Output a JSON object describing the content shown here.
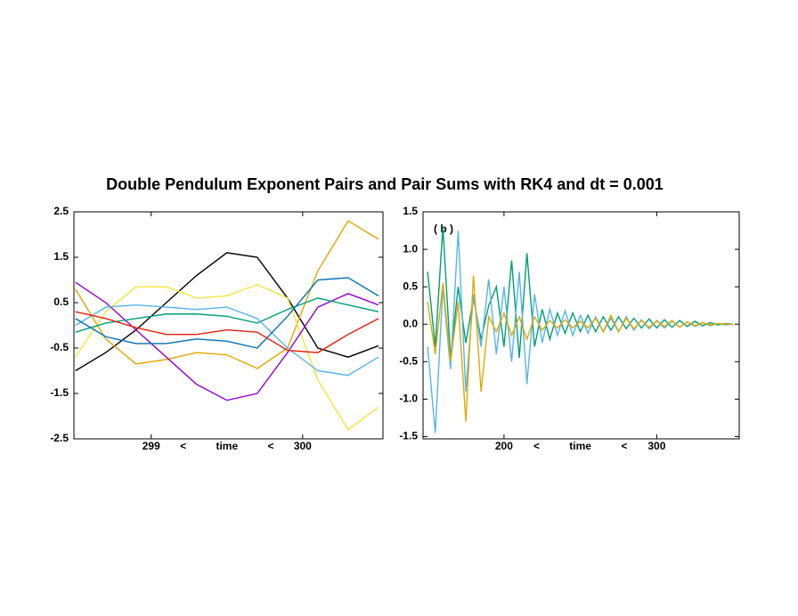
{
  "chart_data": [
    {
      "type": "line",
      "title": "Double Pendulum Exponent Pairs and Pair Sums with RK4 and dt = 0.001",
      "xlabel": "<          time          <",
      "x": [
        298.5,
        298.7,
        298.9,
        299.1,
        299.3,
        299.5,
        299.7,
        299.9,
        300.1,
        300.3,
        300.5
      ],
      "xlim": [
        298.49,
        300.53
      ],
      "xticks": [
        299,
        300
      ],
      "ylim": [
        -2.5,
        2.5
      ],
      "yticks": [
        2.5,
        1.5,
        0.5,
        -0.5,
        -1.5,
        -2.5
      ],
      "series": [
        {
          "color": "#000000",
          "values": [
            -1.0,
            -0.6,
            -0.1,
            0.5,
            1.1,
            1.6,
            1.5,
            0.6,
            -0.5,
            -0.7,
            -0.45
          ]
        },
        {
          "color": "#e0a800",
          "values": [
            0.8,
            -0.3,
            -0.85,
            -0.75,
            -0.6,
            -0.65,
            -0.95,
            -0.5,
            1.2,
            2.3,
            1.9
          ]
        },
        {
          "color": "#f5e43c",
          "values": [
            -0.7,
            0.3,
            0.85,
            0.85,
            0.6,
            0.65,
            0.9,
            0.6,
            -1.2,
            -2.3,
            -1.8
          ]
        },
        {
          "color": "#9400d3",
          "values": [
            0.95,
            0.5,
            -0.1,
            -0.7,
            -1.3,
            -1.65,
            -1.5,
            -0.6,
            0.4,
            0.7,
            0.45
          ]
        },
        {
          "color": "#009e73",
          "values": [
            -0.15,
            0.05,
            0.15,
            0.25,
            0.25,
            0.2,
            0.05,
            0.35,
            0.6,
            0.45,
            0.3
          ]
        },
        {
          "color": "#56b4e9",
          "values": [
            0.0,
            0.4,
            0.45,
            0.4,
            0.35,
            0.4,
            0.15,
            -0.5,
            -1.0,
            -1.1,
            -0.7
          ]
        },
        {
          "color": "#0072b2",
          "values": [
            0.15,
            -0.25,
            -0.4,
            -0.4,
            -0.3,
            -0.35,
            -0.5,
            0.2,
            1.0,
            1.05,
            0.65
          ]
        },
        {
          "color": "#e51e10",
          "values": [
            0.3,
            0.15,
            -0.05,
            -0.2,
            -0.2,
            -0.1,
            -0.15,
            -0.55,
            -0.6,
            -0.2,
            0.15
          ]
        }
      ]
    },
    {
      "type": "line",
      "panel_label": "( b )",
      "xlabel": "<          time          <",
      "x": [
        150,
        155,
        160,
        165,
        170,
        175,
        180,
        185,
        190,
        195,
        200,
        205,
        210,
        215,
        220,
        225,
        230,
        235,
        240,
        245,
        250,
        255,
        260,
        265,
        270,
        275,
        280,
        285,
        290,
        295,
        300,
        305,
        310,
        315,
        320,
        325,
        330,
        335,
        340,
        345,
        350
      ],
      "xlim": [
        147,
        354
      ],
      "xticks": [
        200,
        300
      ],
      "ylim": [
        -1.53,
        1.5
      ],
      "yticks": [
        1.5,
        {
          "value": 1,
          "label": "1.0"
        },
        0.5,
        {
          "value": 0,
          "label": "0.0"
        },
        -0.5,
        {
          "value": -1,
          "label": "-1.0"
        },
        -1.5
      ],
      "series": [
        {
          "color": "#009e73",
          "values": [
            0.7,
            -0.3,
            1.3,
            -0.45,
            0.5,
            -0.25,
            0.35,
            -0.2,
            0.25,
            0.5,
            -0.3,
            0.85,
            -0.45,
            0.95,
            -0.3,
            0.2,
            -0.2,
            0.15,
            -0.12,
            0.15,
            -0.1,
            0.12,
            -0.1,
            0.1,
            -0.08,
            0.1,
            -0.06,
            0.08,
            -0.05,
            0.07,
            -0.05,
            0.06,
            -0.04,
            0.05,
            -0.03,
            0.04,
            -0.02,
            0.02,
            -0.01,
            0.01,
            0.0
          ]
        },
        {
          "color": "#56b4e9",
          "values": [
            -0.3,
            -1.45,
            0.5,
            -0.6,
            1.25,
            -0.9,
            0.4,
            -0.3,
            0.6,
            -0.4,
            0.5,
            -0.5,
            0.7,
            -0.8,
            0.4,
            -0.25,
            0.2,
            -0.15,
            0.18,
            -0.15,
            0.12,
            -0.12,
            0.1,
            -0.1,
            0.08,
            -0.1,
            0.1,
            -0.08,
            0.06,
            -0.06,
            0.05,
            -0.05,
            0.04,
            -0.04,
            0.03,
            -0.03,
            0.02,
            -0.02,
            0.01,
            -0.01,
            0.0
          ]
        },
        {
          "color": "#e0a800",
          "values": [
            0.3,
            -0.4,
            0.55,
            -0.5,
            0.3,
            -1.3,
            0.65,
            -0.9,
            0.1,
            -0.1,
            0.15,
            -0.15,
            0.1,
            -0.2,
            0.1,
            -0.08,
            0.05,
            -0.05,
            0.06,
            -0.05,
            0.04,
            -0.05,
            0.08,
            -0.1,
            0.12,
            -0.1,
            0.08,
            -0.06,
            0.05,
            -0.04,
            0.04,
            -0.03,
            0.05,
            -0.04,
            0.03,
            -0.02,
            0.02,
            -0.01,
            0.01,
            0.0,
            0.0
          ]
        }
      ]
    }
  ]
}
